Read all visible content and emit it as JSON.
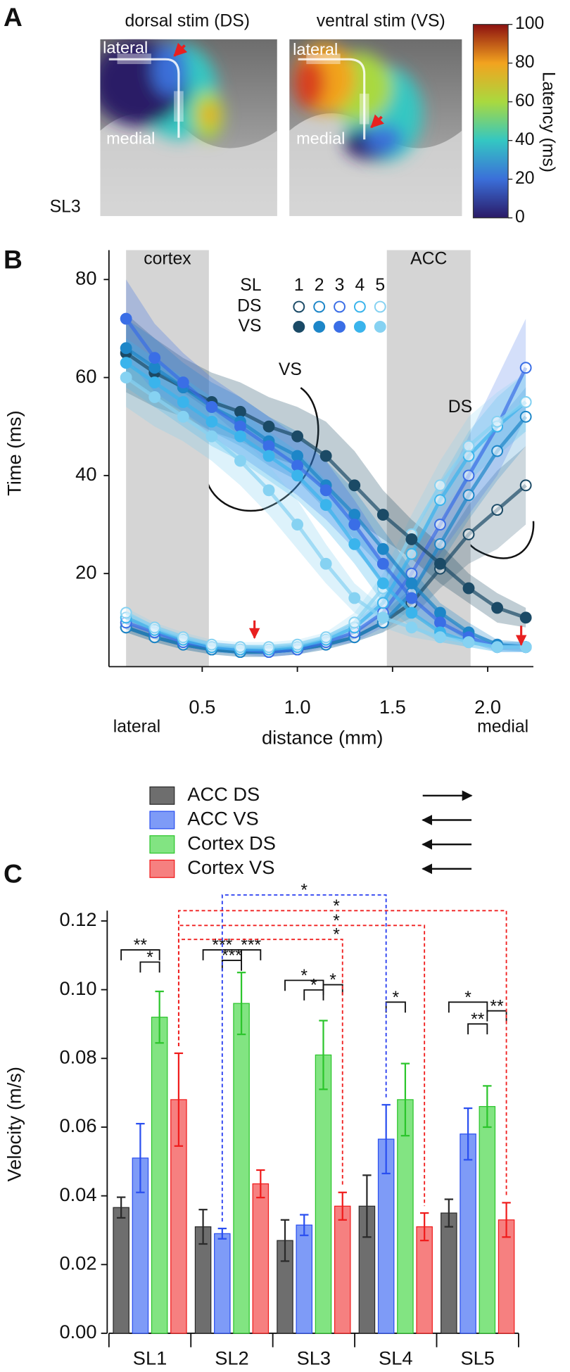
{
  "chart_data": [
    {
      "panel": "A",
      "type": "heatmap",
      "images": [
        {
          "title": "dorsal stim (DS)",
          "labels": [
            "lateral",
            "medial"
          ]
        },
        {
          "title": "ventral stim (VS)",
          "labels": [
            "lateral",
            "medial"
          ]
        }
      ],
      "slice": "SL3",
      "colorbar": {
        "label": "Latency (ms)",
        "lim": [
          0,
          100
        ],
        "ticks": [
          0,
          20,
          40,
          60,
          80,
          100
        ],
        "colors": [
          "#2a1a66",
          "#3b6fd9",
          "#34c7c2",
          "#a9d93f",
          "#f2a31f",
          "#8c1010"
        ]
      }
    },
    {
      "panel": "B",
      "type": "scatter",
      "xlabel": "distance (mm)",
      "ylabel": "Time (ms)",
      "xlim": [
        0.01,
        2.24
      ],
      "ylim": [
        1,
        86
      ],
      "xticks": [
        0.5,
        {
          "value": 1,
          "label": "1.0"
        },
        1.5,
        {
          "value": 2,
          "label": "2.0"
        }
      ],
      "yticks": [
        20,
        40,
        60,
        80
      ],
      "regions": [
        {
          "label": "cortex",
          "range": [
            0.1,
            0.535
          ]
        },
        {
          "label": "ACC",
          "range": [
            1.47,
            1.91
          ]
        }
      ],
      "x_end_labels": [
        "lateral",
        "medial"
      ],
      "legend": {
        "title": "SL",
        "levels": [
          "1",
          "2",
          "3",
          "4",
          "5"
        ]
      },
      "annotations": [
        "VS",
        "DS"
      ],
      "colors": [
        "#1b4a66",
        "#1d86c8",
        "#3a6ee6",
        "#3ab4ec",
        "#86d2f2"
      ],
      "x": [
        0.1,
        0.25,
        0.4,
        0.55,
        0.7,
        0.85,
        1.0,
        1.15,
        1.3,
        1.45,
        1.6,
        1.75,
        1.9,
        2.05,
        2.2
      ],
      "groups": [
        {
          "name": "DS",
          "filled": false,
          "values": [
            [
              9,
              7,
              5.5,
              4.5,
              4,
              4,
              4.5,
              5.5,
              7,
              10,
              14,
              21,
              28,
              33,
              38
            ],
            [
              9,
              7,
              5.5,
              4.5,
              4,
              4,
              4.5,
              5.5,
              7,
              10,
              16,
              26,
              36,
              45,
              52
            ],
            [
              10,
              8,
              6,
              5,
              4.5,
              4,
              4.5,
              6,
              8,
              12,
              20,
              30,
              40,
              50,
              62
            ],
            [
              11,
              8.5,
              6.5,
              5,
              4.5,
              4.5,
              5,
              6.5,
              9,
              14,
              24,
              35,
              44,
              50,
              55
            ],
            [
              12,
              9,
              7,
              5.5,
              5,
              5,
              5.5,
              7,
              10,
              17,
              28,
              38,
              46,
              51,
              55
            ]
          ],
          "errors": [
            [
              1,
              1,
              1,
              1,
              1,
              1,
              1,
              1,
              1,
              2,
              3,
              4,
              6,
              8,
              8
            ],
            [
              1,
              1,
              1,
              1,
              1,
              1,
              1,
              1,
              1,
              2,
              3,
              4,
              5,
              6,
              6
            ],
            [
              1,
              1,
              1,
              1,
              1,
              1,
              1,
              1,
              2,
              3,
              4,
              6,
              8,
              10,
              10
            ],
            [
              1,
              1,
              1,
              1,
              1,
              1,
              1,
              1,
              1,
              2,
              3,
              4,
              5,
              6,
              6
            ],
            [
              1,
              1,
              1,
              1,
              1,
              1,
              1,
              1,
              2,
              3,
              4,
              5,
              6,
              6,
              6
            ]
          ]
        },
        {
          "name": "VS",
          "filled": true,
          "values": [
            [
              65,
              61,
              58,
              55,
              53,
              50,
              48,
              44,
              38,
              32,
              27,
              22,
              17,
              13,
              11
            ],
            [
              66,
              62,
              58,
              54,
              51,
              47,
              44,
              38,
              32,
              25,
              18,
              12,
              8,
              5.5,
              5
            ],
            [
              72,
              64,
              59,
              54,
              50,
              46,
              42,
              37,
              30,
              22,
              15,
              10,
              7,
              5,
              5
            ],
            [
              63,
              59,
              55,
              51,
              48,
              44,
              40,
              34,
              26,
              18,
              12,
              8,
              6,
              5,
              5
            ],
            [
              60,
              56,
              52,
              48,
              43,
              37,
              30,
              22,
              15,
              11,
              9,
              7,
              6,
              5,
              5
            ]
          ],
          "errors": [
            [
              8,
              7,
              6,
              6,
              6,
              6,
              6,
              7,
              7,
              5,
              4,
              4,
              3,
              3,
              2
            ],
            [
              6,
              6,
              5,
              5,
              5,
              5,
              5,
              5,
              5,
              4,
              3,
              2,
              2,
              1,
              1
            ],
            [
              8,
              7,
              6,
              6,
              6,
              6,
              6,
              6,
              5,
              4,
              3,
              2,
              1,
              1,
              1
            ],
            [
              5,
              5,
              5,
              5,
              5,
              5,
              5,
              5,
              4,
              4,
              3,
              2,
              1,
              1,
              1
            ],
            [
              6,
              6,
              5,
              5,
              5,
              5,
              5,
              4,
              3,
              2,
              2,
              1,
              1,
              1,
              1
            ]
          ]
        }
      ]
    },
    {
      "panel": "C",
      "type": "bar",
      "ylabel": "Velocity (m/s)",
      "categories": [
        "SL1",
        "SL2",
        "SL3",
        "SL4",
        "SL5"
      ],
      "ylim": [
        0,
        0.123
      ],
      "yticks": [
        {
          "value": 0,
          "label": "0.00"
        },
        {
          "value": 0.02,
          "label": "0.02"
        },
        {
          "value": 0.04,
          "label": "0.04"
        },
        {
          "value": 0.06,
          "label": "0.06"
        },
        {
          "value": 0.08,
          "label": "0.08"
        },
        {
          "value": 0.1,
          "label": "0.10"
        },
        {
          "value": 0.12,
          "label": "0.12"
        }
      ],
      "series": [
        {
          "name": "ACC DS",
          "color": "#6e6e6e",
          "edge": "#2a2a2a",
          "values": [
            0.0366,
            0.031,
            0.027,
            0.037,
            0.035
          ],
          "errors": [
            0.003,
            0.005,
            0.006,
            0.009,
            0.004
          ]
        },
        {
          "name": "ACC VS",
          "color": "#7e9bf7",
          "edge": "#2a4ff0",
          "values": [
            0.051,
            0.029,
            0.0315,
            0.0565,
            0.058
          ],
          "errors": [
            0.01,
            0.0015,
            0.003,
            0.01,
            0.0075
          ]
        },
        {
          "name": "Cortex DS",
          "color": "#82e482",
          "edge": "#2cc52c",
          "values": [
            0.092,
            0.096,
            0.081,
            0.068,
            0.066
          ],
          "errors": [
            0.0075,
            0.009,
            0.01,
            0.0105,
            0.006
          ]
        },
        {
          "name": "Cortex VS",
          "color": "#f68080",
          "edge": "#f01c1c",
          "values": [
            0.068,
            0.0435,
            0.037,
            0.031,
            0.033
          ],
          "errors": [
            0.0135,
            0.004,
            0.004,
            0.004,
            0.005
          ]
        }
      ],
      "significance": [
        "**",
        "*",
        "***",
        "***",
        "***",
        "*",
        "*",
        "*",
        "*",
        "*",
        "**",
        "**",
        "*",
        "*",
        "*",
        "*"
      ]
    }
  ]
}
